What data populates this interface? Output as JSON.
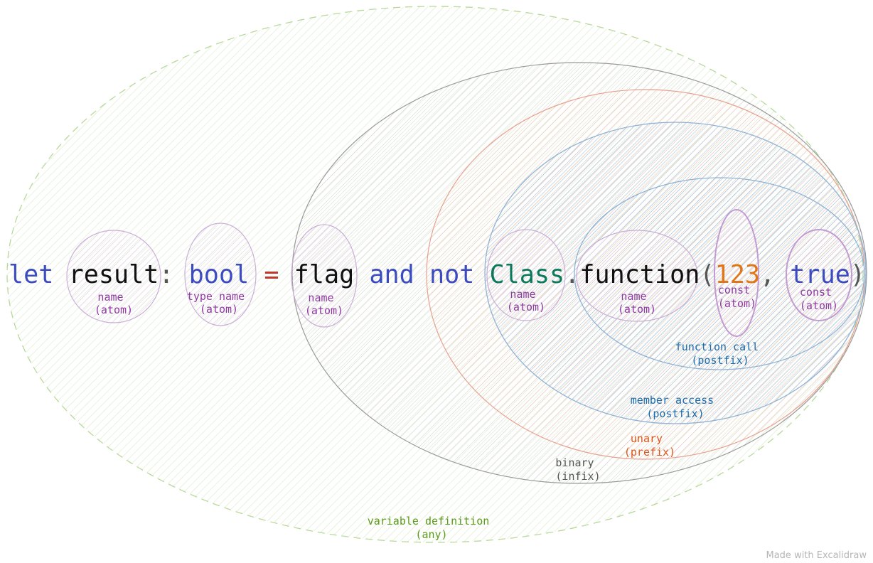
{
  "code": {
    "tokens": [
      {
        "text": "let",
        "color": "#3b4cc0"
      },
      {
        "text": " ",
        "color": "#000000"
      },
      {
        "text": "result",
        "color": "#111111"
      },
      {
        "text": ":",
        "color": "#555555"
      },
      {
        "text": " ",
        "color": "#000000"
      },
      {
        "text": "bool",
        "color": "#3b4cc0"
      },
      {
        "text": " ",
        "color": "#000000"
      },
      {
        "text": "=",
        "color": "#c0392b"
      },
      {
        "text": " ",
        "color": "#000000"
      },
      {
        "text": "flag",
        "color": "#111111"
      },
      {
        "text": " ",
        "color": "#000000"
      },
      {
        "text": "and",
        "color": "#3b4cc0"
      },
      {
        "text": " ",
        "color": "#000000"
      },
      {
        "text": "not",
        "color": "#3b4cc0"
      },
      {
        "text": " ",
        "color": "#000000"
      },
      {
        "text": "Class",
        "color": "#0b7a5c"
      },
      {
        "text": ".",
        "color": "#555555"
      },
      {
        "text": "function",
        "color": "#111111"
      },
      {
        "text": "(",
        "color": "#555555"
      },
      {
        "text": "123",
        "color": "#e0761a"
      },
      {
        "text": ",",
        "color": "#555555"
      },
      {
        "text": " ",
        "color": "#000000"
      },
      {
        "text": "true",
        "color": "#3b4cc0"
      },
      {
        "text": ")",
        "color": "#555555"
      }
    ]
  },
  "regions": {
    "variable_definition": {
      "line1": "variable definition",
      "line2": "(any)",
      "color": "#5a9a1a",
      "fill": "#d8ebc4"
    },
    "binary": {
      "line1": "binary",
      "line2": "(infix)",
      "color": "#555555",
      "fill": "#c8c8c8"
    },
    "unary": {
      "line1": "unary",
      "line2": "(prefix)",
      "color": "#e0531a",
      "fill": "#f3b7a8"
    },
    "member_access": {
      "line1": "member access",
      "line2": "(postfix)",
      "color": "#1c6bab",
      "fill": "#8fb3d6"
    },
    "function_call": {
      "line1": "function call",
      "line2": "(postfix)",
      "color": "#1c6bab",
      "fill": "#8fb3d6"
    }
  },
  "atoms": {
    "result": {
      "line1": "name",
      "line2": "(atom)"
    },
    "bool": {
      "line1": "type name",
      "line2": "(atom)"
    },
    "flag": {
      "line1": "name",
      "line2": "(atom)"
    },
    "class": {
      "line1": "name",
      "line2": "(atom)"
    },
    "function": {
      "line1": "name",
      "line2": "(atom)"
    },
    "num": {
      "line1": "const",
      "line2": "(atom)"
    },
    "true": {
      "line1": "const",
      "line2": "(atom)"
    },
    "color": "#8e3aa0",
    "fill": "#d9c2e0"
  },
  "watermark": "Made with Excalidraw"
}
